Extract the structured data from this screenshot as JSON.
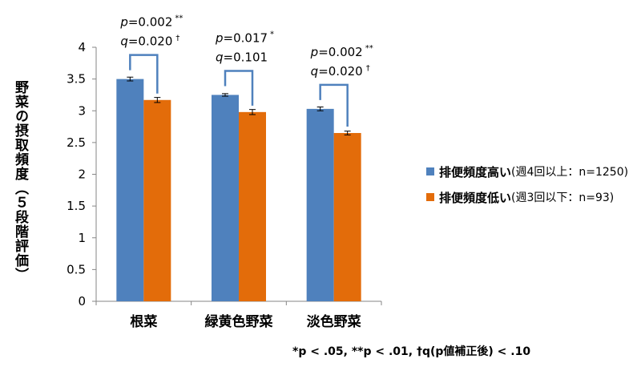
{
  "chart_data": {
    "type": "bar",
    "categories": [
      "根菜",
      "緑黄色野菜",
      "淡色野菜"
    ],
    "series": [
      {
        "name": "排便頻度高い",
        "detail": "(週4回以上：n=1250)",
        "color": "#4F81BD",
        "values": [
          3.5,
          3.25,
          3.03
        ],
        "errors": [
          0.03,
          0.02,
          0.03
        ]
      },
      {
        "name": "排便頻度低い",
        "detail": "(週3回以下：n=93)",
        "color": "#E36C0A",
        "values": [
          3.17,
          2.98,
          2.65
        ],
        "errors": [
          0.04,
          0.04,
          0.03
        ]
      }
    ],
    "ylabel": "野菜の摂取頻度（５段階評価）",
    "ylim": [
      0,
      4
    ],
    "yticks": [
      "0",
      "0.5",
      "1",
      "1.5",
      "2",
      "2.5",
      "3",
      "3.5",
      "4"
    ],
    "legend_position": "right",
    "annotations": [
      {
        "category": "根菜",
        "p": "0.002",
        "p_mark": "**",
        "q": "0.020",
        "q_mark": "†"
      },
      {
        "category": "緑黄色野菜",
        "p": "0.017",
        "p_mark": "*",
        "q": "0.101",
        "q_mark": ""
      },
      {
        "category": "淡色野菜",
        "p": "0.002",
        "p_mark": "**",
        "q": "0.020",
        "q_mark": "†"
      }
    ],
    "footnote": "*p < .05, **p < .01, †q(p値補正後) < .10"
  }
}
